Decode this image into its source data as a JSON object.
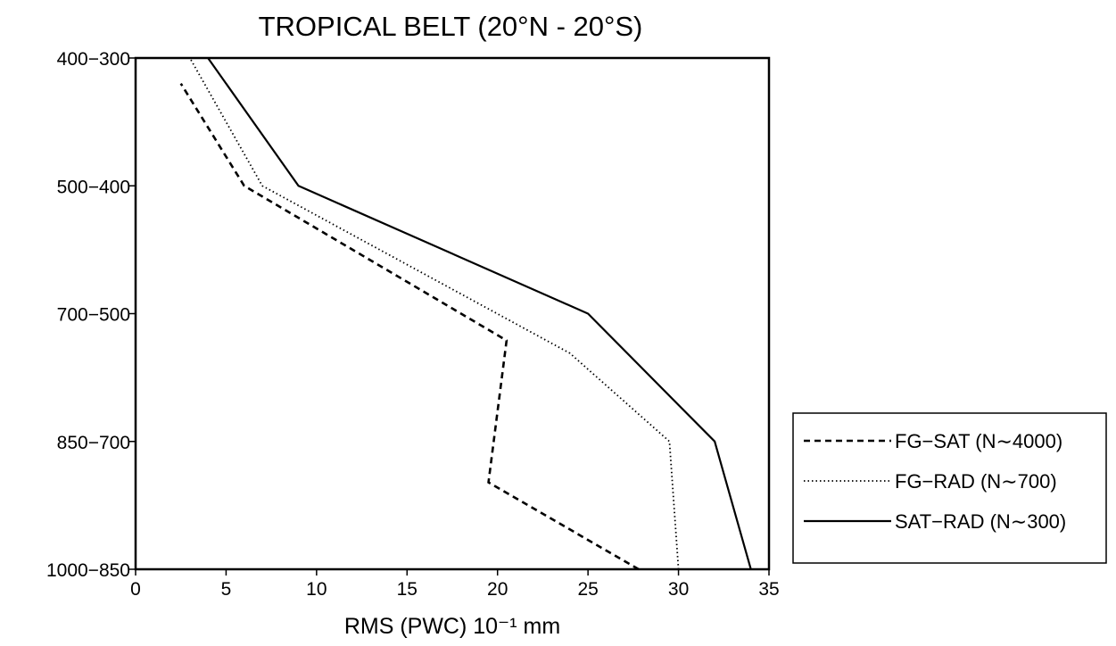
{
  "chart_data": {
    "type": "line",
    "title": "TROPICAL BELT (20°N - 20°S)",
    "xlabel": "RMS (PWC) 10⁻¹ mm",
    "ylabel": "",
    "xlim": [
      0,
      35
    ],
    "x_ticks": [
      "0",
      "5",
      "10",
      "15",
      "20",
      "25",
      "30",
      "35"
    ],
    "y_levels": [
      "1000−850",
      "850−700",
      "700−500",
      "500−400",
      "400−300"
    ],
    "grid": false,
    "legend_position": "right",
    "series": [
      {
        "name": "FG−SAT (N∼4000)",
        "style": "dashed",
        "points": [
          [
            27.8,
            0.0
          ],
          [
            19.5,
            0.68
          ],
          [
            20.5,
            1.79
          ],
          [
            6,
            3.0
          ],
          [
            2.5,
            3.8
          ]
        ]
      },
      {
        "name": "FG−RAD (N∼700)",
        "style": "dotted",
        "points": [
          [
            30,
            0.0
          ],
          [
            29.5,
            1.0
          ],
          [
            24,
            1.69
          ],
          [
            7,
            3.0
          ],
          [
            3,
            4.0
          ]
        ]
      },
      {
        "name": "SAT−RAD (N∼300)",
        "style": "solid",
        "points": [
          [
            34,
            0.0
          ],
          [
            32,
            1.0
          ],
          [
            25,
            2.0
          ],
          [
            9,
            3.0
          ],
          [
            4,
            4.0
          ]
        ]
      }
    ]
  }
}
